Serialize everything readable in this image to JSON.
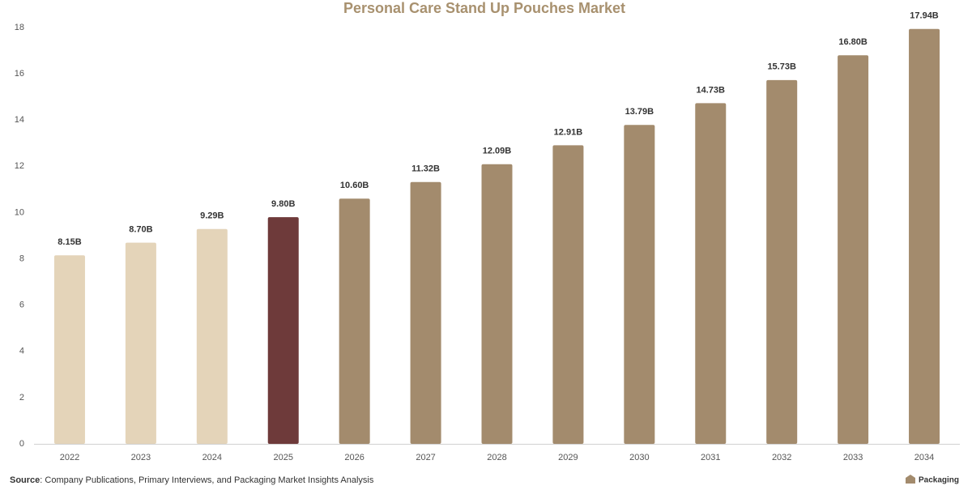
{
  "chart_data": {
    "type": "bar",
    "title": "Personal Care Stand Up Pouches Market",
    "categories": [
      "2022",
      "2023",
      "2024",
      "2025",
      "2026",
      "2027",
      "2028",
      "2029",
      "2030",
      "2031",
      "2032",
      "2033",
      "2034"
    ],
    "values": [
      8.15,
      8.7,
      9.29,
      9.8,
      10.6,
      11.32,
      12.09,
      12.91,
      13.79,
      14.73,
      15.73,
      16.8,
      17.94
    ],
    "value_labels": [
      "8.15B",
      "8.70B",
      "9.29B",
      "9.80B",
      "10.60B",
      "11.32B",
      "12.09B",
      "12.91B",
      "13.79B",
      "14.73B",
      "15.73B",
      "16.80B",
      "17.94B"
    ],
    "colors": [
      "#e4d4b9",
      "#e4d4b9",
      "#e4d4b9",
      "#6e3a3a",
      "#a38b6d",
      "#a38b6d",
      "#a38b6d",
      "#a38b6d",
      "#a38b6d",
      "#a38b6d",
      "#a38b6d",
      "#a38b6d",
      "#a38b6d"
    ],
    "ylim": [
      0,
      18
    ],
    "yticks": [
      0,
      2,
      4,
      6,
      8,
      10,
      12,
      14,
      16,
      18
    ],
    "grid": false,
    "source_label": "Source",
    "source_text": ": Company Publications, Primary Interviews, and Packaging Market Insights Analysis",
    "brand": "Packaging"
  }
}
